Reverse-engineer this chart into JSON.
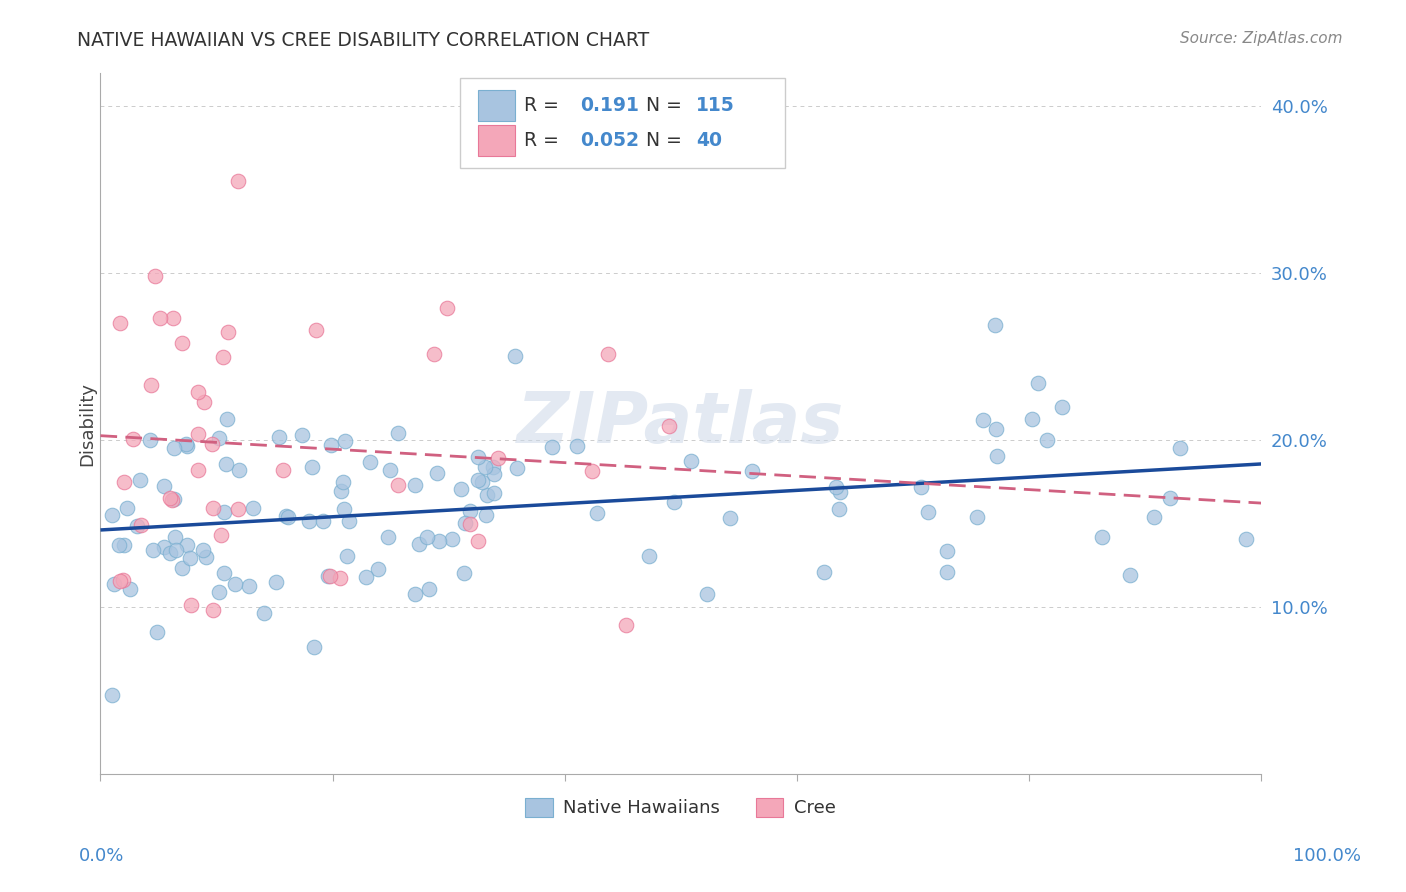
{
  "title": "NATIVE HAWAIIAN VS CREE DISABILITY CORRELATION CHART",
  "source": "Source: ZipAtlas.com",
  "ylabel": "Disability",
  "r_nh": 0.191,
  "n_nh": 115,
  "r_cree": 0.052,
  "n_cree": 40,
  "xlim": [
    0.0,
    1.0
  ],
  "ylim": [
    0.0,
    0.42
  ],
  "yticks": [
    0.1,
    0.2,
    0.3,
    0.4
  ],
  "ytick_labels": [
    "10.0%",
    "20.0%",
    "30.0%",
    "40.0%"
  ],
  "nh_color": "#a8c4e0",
  "cree_color": "#f4a7b9",
  "nh_edge_color": "#7aafd0",
  "cree_edge_color": "#e87898",
  "nh_line_color": "#1a4a9a",
  "cree_line_color": "#d06080",
  "watermark": "ZIPatlas",
  "legend_r_color": "#333333",
  "legend_val_color": "#4488cc",
  "title_color": "#333333",
  "source_color": "#888888",
  "axis_color": "#aaaaaa",
  "grid_color": "#cccccc",
  "right_tick_color": "#4488cc"
}
